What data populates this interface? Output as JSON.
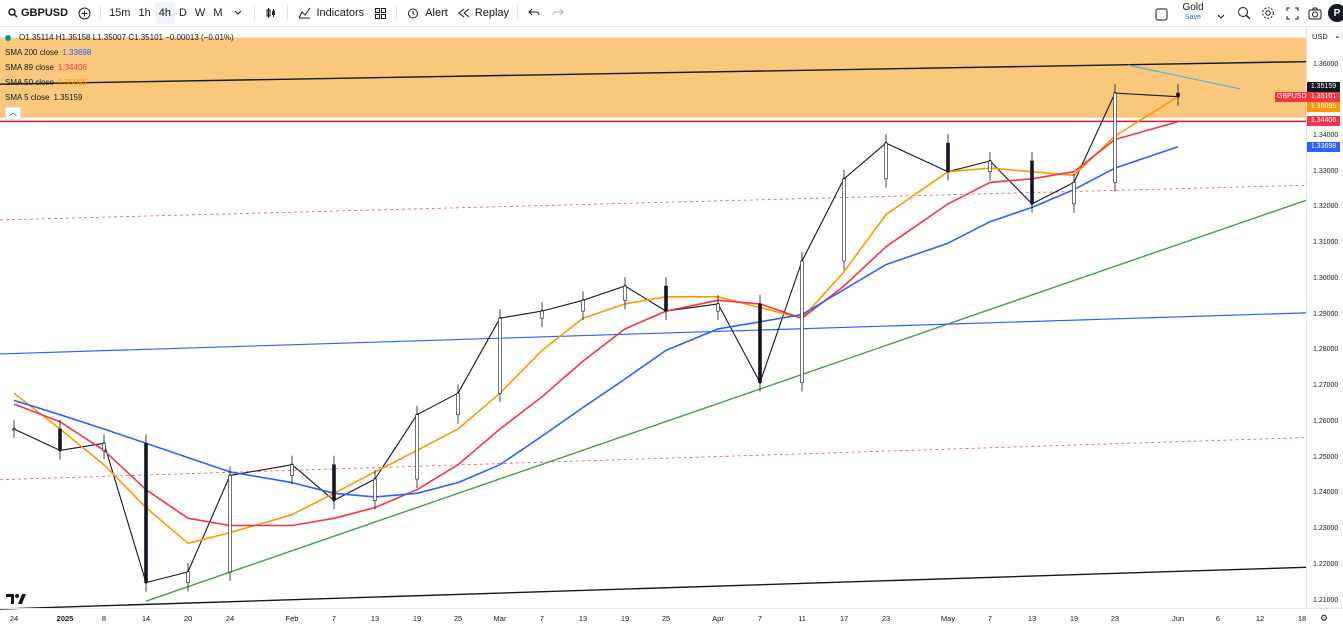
{
  "toolbar": {
    "symbol": "GBPUSD",
    "intervals": [
      "15m",
      "1h",
      "4h",
      "D",
      "W",
      "M"
    ],
    "active_interval": "4h",
    "indicators_label": "Indicators",
    "alert_label": "Alert",
    "replay_label": "Replay",
    "gold_label": "Gold",
    "save_label": "Save",
    "avatar_initial": "P"
  },
  "legend": {
    "ohlc": "O1.35114  H1.35158  L1.35007  C1.35101  −0.00013 (−0.01%)",
    "sma": [
      {
        "label": "SMA 200 close",
        "value": "1.33698",
        "color": "#2962ff"
      },
      {
        "label": "SMA 89 close",
        "value": "1.34406",
        "color": "#f23645"
      },
      {
        "label": "SMA 50 close",
        "value": "1.35095",
        "color": "#ff9800"
      },
      {
        "label": "SMA 5 close",
        "value": "1.35159",
        "color": "#131722"
      }
    ]
  },
  "price_axis": {
    "currency": "USD",
    "ticks": [
      "1.36000",
      "1.35000",
      "1.34000",
      "1.33000",
      "1.32000",
      "1.31000",
      "1.30000",
      "1.29000",
      "1.28000",
      "1.27000",
      "1.26000",
      "1.25000",
      "1.24000",
      "1.23000",
      "1.22000",
      "1.21000"
    ],
    "labels": [
      {
        "text": "1.35159",
        "bg": "#131722"
      },
      {
        "text": "1.35101",
        "bg": "#f23645"
      },
      {
        "text": "1.35095",
        "bg": "#ff9800"
      },
      {
        "text": "1.34406",
        "bg": "#f23645"
      },
      {
        "text": "1.33698",
        "bg": "#2962ff"
      }
    ],
    "symbol_tag": "GBPUSD"
  },
  "time_axis": {
    "ticks": [
      "24",
      "2025",
      "8",
      "14",
      "20",
      "24",
      "Feb",
      "7",
      "13",
      "19",
      "25",
      "Mar",
      "7",
      "13",
      "19",
      "25",
      "Apr",
      "7",
      "11",
      "17",
      "23",
      "May",
      "7",
      "13",
      "19",
      "23",
      "Jun",
      "6",
      "12",
      "18"
    ]
  },
  "chart_data": {
    "type": "line",
    "title": "",
    "xlabel": "",
    "ylabel": "",
    "ylim": [
      1.205,
      1.368
    ],
    "x": [
      "Dec 24",
      "Jan 1",
      "Jan 8",
      "Jan 14",
      "Jan 20",
      "Jan 24",
      "Feb 1",
      "Feb 7",
      "Feb 13",
      "Feb 19",
      "Feb 25",
      "Mar 1",
      "Mar 7",
      "Mar 13",
      "Mar 19",
      "Mar 25",
      "Apr 1",
      "Apr 7",
      "Apr 11",
      "Apr 17",
      "Apr 23",
      "May 1",
      "May 7",
      "May 13",
      "May 19",
      "May 23",
      "Jun 1"
    ],
    "series": [
      {
        "name": "GBPUSD",
        "color": "#131722",
        "values": [
          1.258,
          1.252,
          1.254,
          1.215,
          1.218,
          1.245,
          1.248,
          1.238,
          1.244,
          1.262,
          1.268,
          1.289,
          1.291,
          1.294,
          1.298,
          1.291,
          1.293,
          1.271,
          1.305,
          1.328,
          1.338,
          1.33,
          1.333,
          1.321,
          1.327,
          1.352,
          1.351
        ]
      },
      {
        "name": "SMA 50 close",
        "color": "#ff9800",
        "values": [
          1.268,
          1.258,
          1.248,
          1.236,
          1.226,
          1.229,
          1.234,
          1.24,
          1.246,
          1.252,
          1.258,
          1.268,
          1.28,
          1.289,
          1.293,
          1.295,
          1.295,
          1.292,
          1.289,
          1.302,
          1.318,
          1.33,
          1.331,
          1.33,
          1.329,
          1.34,
          1.351
        ]
      },
      {
        "name": "SMA 89 close",
        "color": "#f23645",
        "values": [
          1.265,
          1.26,
          1.252,
          1.241,
          1.233,
          1.231,
          1.231,
          1.233,
          1.236,
          1.241,
          1.248,
          1.258,
          1.267,
          1.277,
          1.286,
          1.291,
          1.294,
          1.293,
          1.289,
          1.298,
          1.309,
          1.321,
          1.327,
          1.328,
          1.33,
          1.339,
          1.344
        ]
      },
      {
        "name": "SMA 200 close",
        "color": "#2962ff",
        "values": [
          1.266,
          1.262,
          1.258,
          1.254,
          1.25,
          1.246,
          1.243,
          1.24,
          1.239,
          1.24,
          1.243,
          1.248,
          1.256,
          1.264,
          1.272,
          1.28,
          1.286,
          1.288,
          1.29,
          1.297,
          1.304,
          1.31,
          1.316,
          1.32,
          1.325,
          1.331,
          1.337
        ]
      }
    ],
    "levels": [
      1.3441
    ],
    "shaded_zone": [
      1.3451,
      1.3675
    ]
  }
}
